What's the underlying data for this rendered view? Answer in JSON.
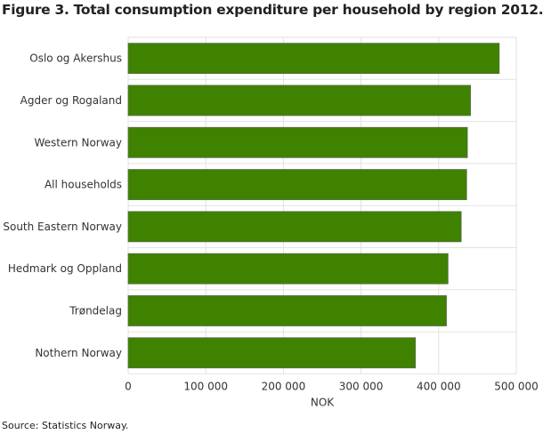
{
  "title": "Figure 3. Total consumption expenditure per household by region 2012. NOK",
  "source": "Source: Statistics Norway.",
  "chart_data": {
    "type": "bar",
    "orientation": "horizontal",
    "title": "Figure 3. Total consumption expenditure per household by region 2012. NOK",
    "categories": [
      "Oslo og Akershus",
      "Agder og Rogaland",
      "Western Norway",
      "All households",
      "South Eastern Norway",
      "Hedmark og Oppland",
      "Trøndelag",
      "Nothern Norway"
    ],
    "values": [
      478000,
      441000,
      437000,
      436000,
      429000,
      412000,
      410000,
      370000
    ],
    "xlabel": "NOK",
    "ylabel": "",
    "xlim": [
      0,
      500000
    ],
    "ticks": [
      0,
      100000,
      200000,
      300000,
      400000,
      500000
    ],
    "tick_labels": [
      "0",
      "100 000",
      "200 000",
      "300 000",
      "400 000",
      "500 000"
    ],
    "grid": true,
    "bar_color": "#3f8200"
  }
}
